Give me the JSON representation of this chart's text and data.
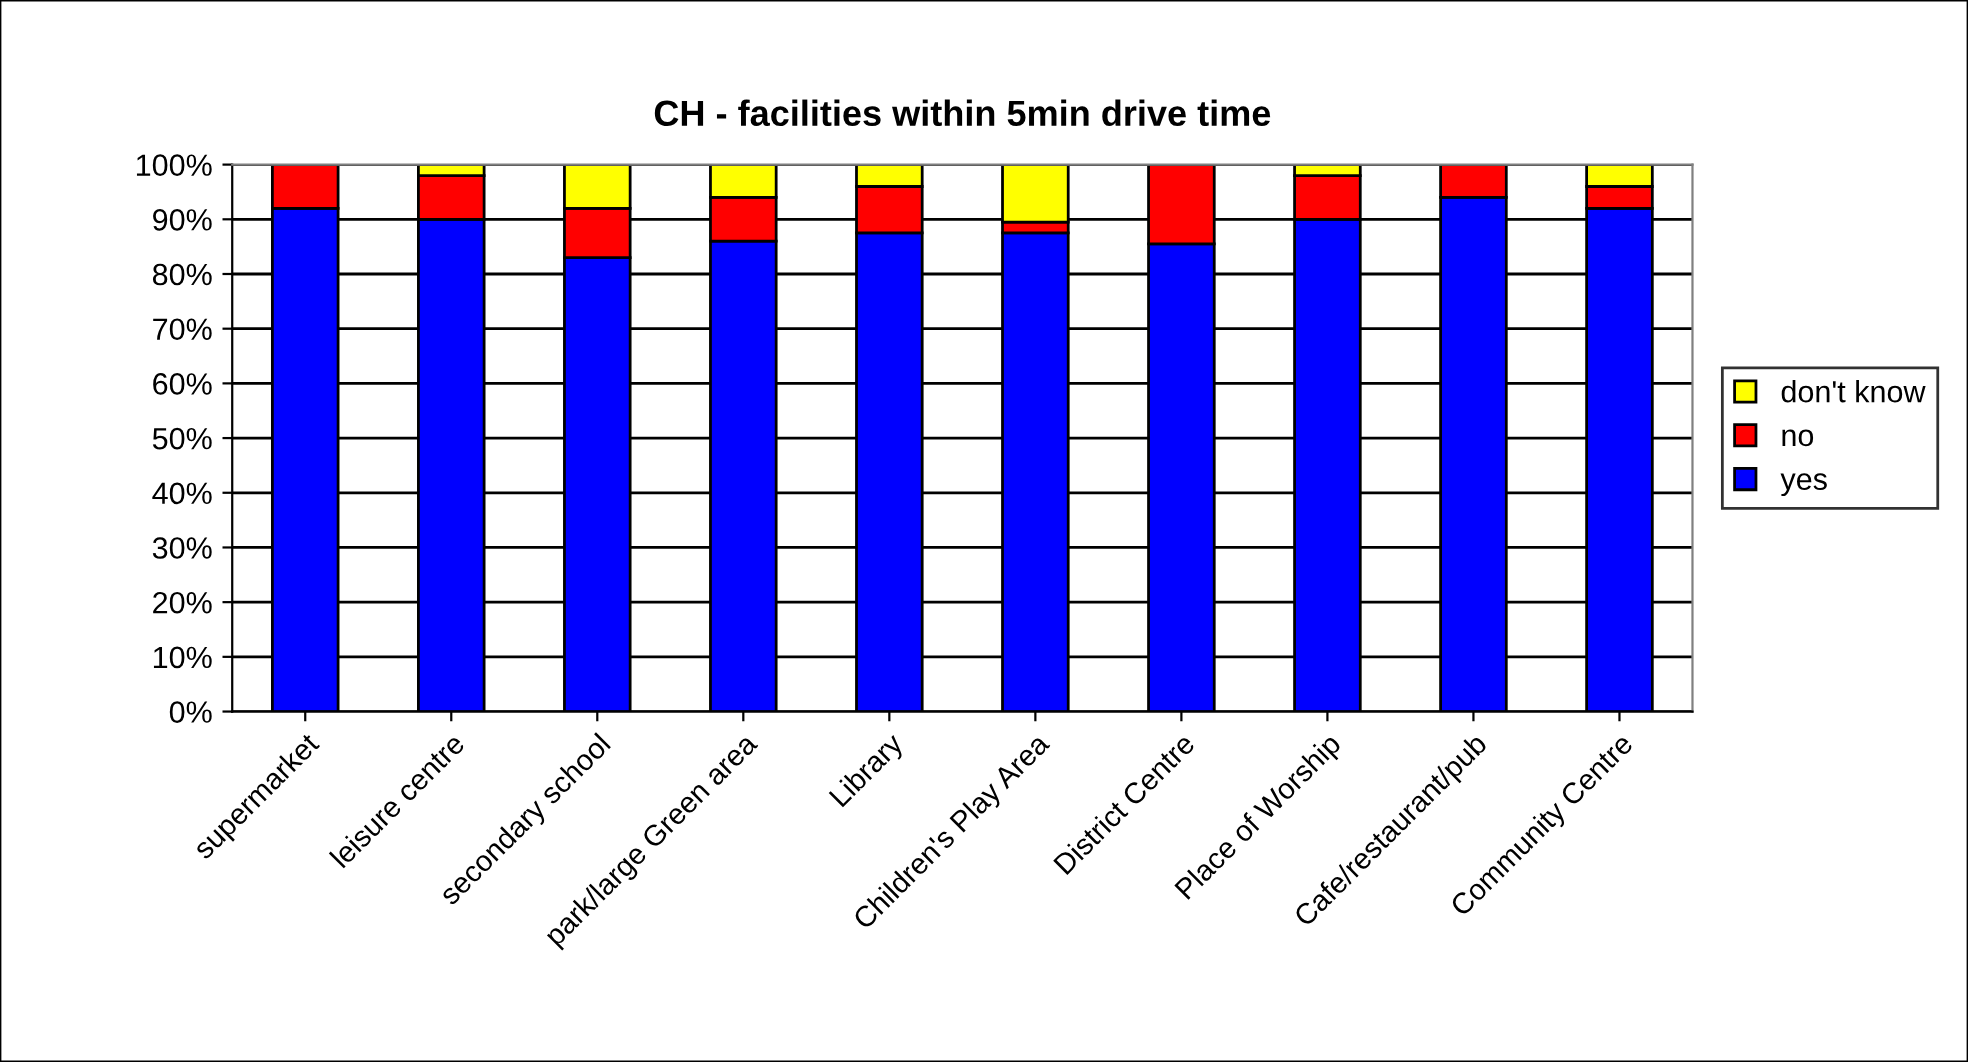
{
  "chart_data": {
    "type": "bar",
    "title": "CH - facilities within 5min drive time",
    "categories": [
      "supermarket",
      "leisure centre",
      "secondary school",
      "park/large Green area",
      "Library",
      "Children's Play Area",
      "District Centre",
      "Place of Worship",
      "Cafe/restaurant/pub",
      "Community Centre"
    ],
    "series": [
      {
        "name": "yes",
        "color": "#0000ff",
        "values": [
          92,
          90,
          83,
          86,
          87.5,
          87.5,
          85.5,
          90,
          94,
          92
        ]
      },
      {
        "name": "no",
        "color": "#ff0000",
        "values": [
          8,
          8,
          9,
          8,
          8.5,
          2,
          14.5,
          8,
          6,
          4
        ]
      },
      {
        "name": "don't know",
        "color": "#ffff00",
        "values": [
          null,
          2,
          8,
          6,
          4,
          10.5,
          null,
          2,
          null,
          4
        ]
      }
    ],
    "stacked": true,
    "ylim": [
      0,
      100
    ],
    "yticks": [
      {
        "value": 0,
        "label": "0%"
      },
      {
        "value": 10,
        "label": "10%"
      },
      {
        "value": 20,
        "label": "20%"
      },
      {
        "value": 30,
        "label": "30%"
      },
      {
        "value": 40,
        "label": "40%"
      },
      {
        "value": 50,
        "label": "50%"
      },
      {
        "value": 60,
        "label": "60%"
      },
      {
        "value": 70,
        "label": "70%"
      },
      {
        "value": 80,
        "label": "80%"
      },
      {
        "value": 90,
        "label": "90%"
      },
      {
        "value": 100,
        "label": "100%"
      }
    ],
    "grid": "y",
    "legend": "right"
  }
}
